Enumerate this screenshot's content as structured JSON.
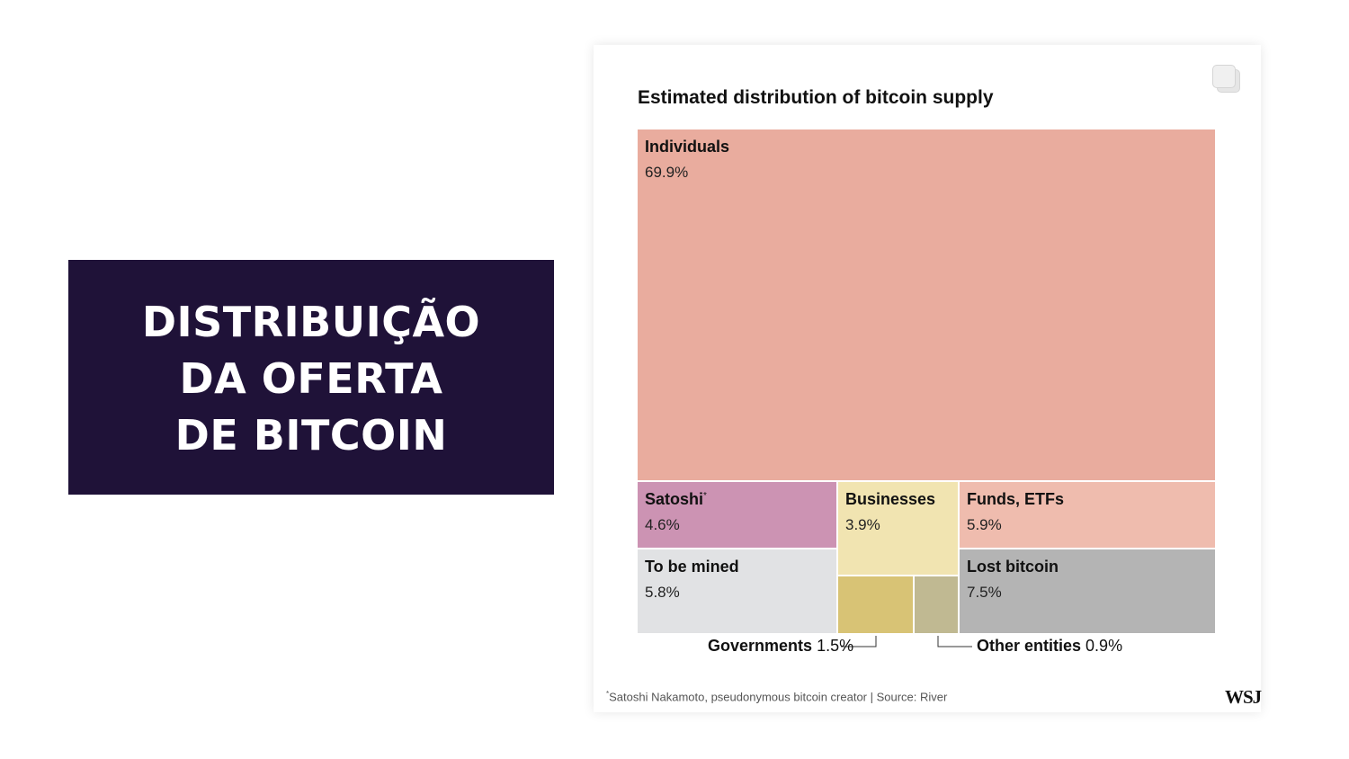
{
  "slide": {
    "title_lines": [
      "DISTRIBUIÇÃO",
      "DA OFERTA",
      "DE BITCOIN"
    ]
  },
  "chart_data": {
    "type": "treemap",
    "title": "Estimated distribution of bitcoin supply",
    "unit": "%",
    "items": [
      {
        "name": "Individuals",
        "value": 69.9,
        "label": "69.9%",
        "color": "#e9ac9e"
      },
      {
        "name": "Satoshi",
        "marker": "*",
        "value": 4.6,
        "label": "4.6%",
        "color": "#cc93b3"
      },
      {
        "name": "To be mined",
        "value": 5.8,
        "label": "5.8%",
        "color": "#e1e2e4"
      },
      {
        "name": "Businesses",
        "value": 3.9,
        "label": "3.9%",
        "color": "#f1e4b1"
      },
      {
        "name": "Governments",
        "value": 1.5,
        "label": "1.5%",
        "color": "#d8c375"
      },
      {
        "name": "Other entities",
        "value": 0.9,
        "label": "0.9%",
        "color": "#c0b992"
      },
      {
        "name": "Funds, ETFs",
        "value": 5.9,
        "label": "5.9%",
        "color": "#efbcae"
      },
      {
        "name": "Lost bitcoin",
        "value": 7.5,
        "label": "7.5%",
        "color": "#b4b4b4"
      }
    ],
    "footnote_marker": "*",
    "footnote": "Satoshi Nakamoto, pseudonymous bitcoin creator | Source: River",
    "logo": "WSJ"
  }
}
